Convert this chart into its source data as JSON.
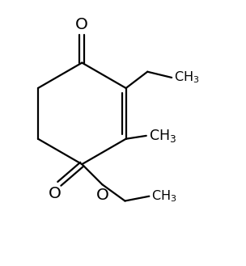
{
  "background": "#ffffff",
  "line_color": "#000000",
  "line_width": 1.6,
  "font_size": 11.5,
  "figsize": [
    3.04,
    3.29
  ],
  "dpi": 100,
  "xlim": [
    0.0,
    5.8
  ],
  "ylim": [
    0.5,
    7.2
  ]
}
